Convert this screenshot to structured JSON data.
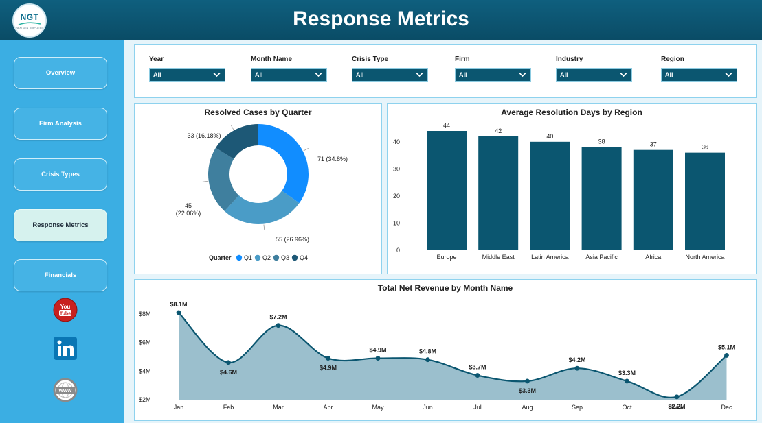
{
  "header": {
    "title": "Response Metrics",
    "logo_text": "NGT",
    "logo_subtext": "NEXT GEN TEMPLATES"
  },
  "sidebar": {
    "items": [
      {
        "label": "Overview",
        "active": false
      },
      {
        "label": "Firm Analysis",
        "active": false
      },
      {
        "label": "Crisis Types",
        "active": false
      },
      {
        "label": "Response Metrics",
        "active": true
      },
      {
        "label": "Financials",
        "active": false
      }
    ],
    "social": [
      {
        "icon": "youtube-icon",
        "label": "You Tube",
        "color": "#c8201e"
      },
      {
        "icon": "linkedin-icon",
        "label": "in",
        "color": "#0a76b4"
      },
      {
        "icon": "globe-icon",
        "label": "www",
        "color": "#8a8a8a"
      }
    ]
  },
  "filters": [
    {
      "label": "Year",
      "value": "All"
    },
    {
      "label": "Month Name",
      "value": "All"
    },
    {
      "label": "Crisis Type",
      "value": "All"
    },
    {
      "label": "Firm",
      "value": "All"
    },
    {
      "label": "Industry",
      "value": "All"
    },
    {
      "label": "Region",
      "value": "All"
    }
  ],
  "colors": {
    "header": "#0a4c66",
    "sidebar": "#3baee3",
    "bar": "#0b5670",
    "line": "#0b5670",
    "area": "#9bbfcd",
    "q1": "#118dff",
    "q2": "#4a9cc7",
    "q3": "#3f7f9e",
    "q4": "#1d5876"
  },
  "chart_data": [
    {
      "type": "pie",
      "subtype": "donut",
      "title": "Resolved Cases by Quarter",
      "legend_title": "Quarter",
      "categories": [
        "Q1",
        "Q2",
        "Q3",
        "Q4"
      ],
      "values": [
        71,
        55,
        45,
        33
      ],
      "data_labels": [
        "71 (34.8%)",
        "55 (26.96%)",
        "45 (22.06%)",
        "33 (16.18%)"
      ],
      "legend_position": "bottom"
    },
    {
      "type": "bar",
      "title": "Average Resolution Days by Region",
      "categories": [
        "Europe",
        "Middle East",
        "Latin America",
        "Asia Pacific",
        "Africa",
        "North America"
      ],
      "values": [
        44,
        42,
        40,
        38,
        37,
        36
      ],
      "yticks": [
        "0",
        "10",
        "20",
        "30",
        "40"
      ],
      "ylim": [
        0,
        44
      ],
      "grid": false
    },
    {
      "type": "area",
      "title": "Total Net Revenue by Month Name",
      "categories": [
        "Jan",
        "Feb",
        "Mar",
        "Apr",
        "May",
        "Jun",
        "Jul",
        "Aug",
        "Sep",
        "Oct",
        "Nov",
        "Dec"
      ],
      "values": [
        8.1,
        4.6,
        7.2,
        4.9,
        4.9,
        4.8,
        3.7,
        3.3,
        4.2,
        3.3,
        2.2,
        5.1
      ],
      "data_labels": [
        "$8.1M",
        "$4.6M",
        "$7.2M",
        "$4.9M",
        "$4.9M",
        "$4.8M",
        "$3.7M",
        "$3.3M",
        "$4.2M",
        "$3.3M",
        "$2.2M",
        "$5.1M"
      ],
      "yticks": [
        "$2M",
        "$4M",
        "$6M",
        "$8M"
      ],
      "ylim": [
        2,
        8
      ],
      "grid": false
    }
  ]
}
